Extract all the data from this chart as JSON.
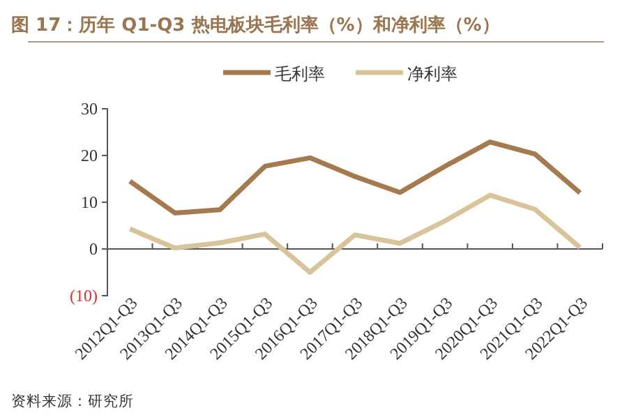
{
  "chart_data": {
    "type": "line",
    "title": "图 17：历年 Q1-Q3 热电板块毛利率（%）和净利率（%）",
    "categories": [
      "2012Q1-Q3",
      "2013Q1-Q3",
      "2014Q1-Q3",
      "2015Q1-Q3",
      "2016Q1-Q3",
      "2017Q1-Q3",
      "2018Q1-Q3",
      "2019Q1-Q3",
      "2020Q1-Q3",
      "2021Q1-Q3",
      "2022Q1-Q3"
    ],
    "series": [
      {
        "name": "毛利率",
        "color": "#a47a4e",
        "values": [
          14.5,
          7.7,
          8.4,
          17.7,
          19.5,
          15.5,
          12.1,
          17.7,
          22.9,
          20.3,
          12.0
        ]
      },
      {
        "name": "净利率",
        "color": "#d8c49a",
        "values": [
          4.3,
          0.2,
          1.3,
          3.2,
          -5.0,
          3.0,
          1.2,
          6.0,
          11.5,
          8.5,
          0.3
        ]
      }
    ],
    "ylim": [
      -10,
      30
    ],
    "yticks": [
      {
        "value": -10,
        "label": "(10)"
      },
      0,
      10,
      20,
      30
    ],
    "legend": "top",
    "marker": "none",
    "line_style": "solid",
    "annotations": [
      "资料来源：研究所"
    ]
  }
}
